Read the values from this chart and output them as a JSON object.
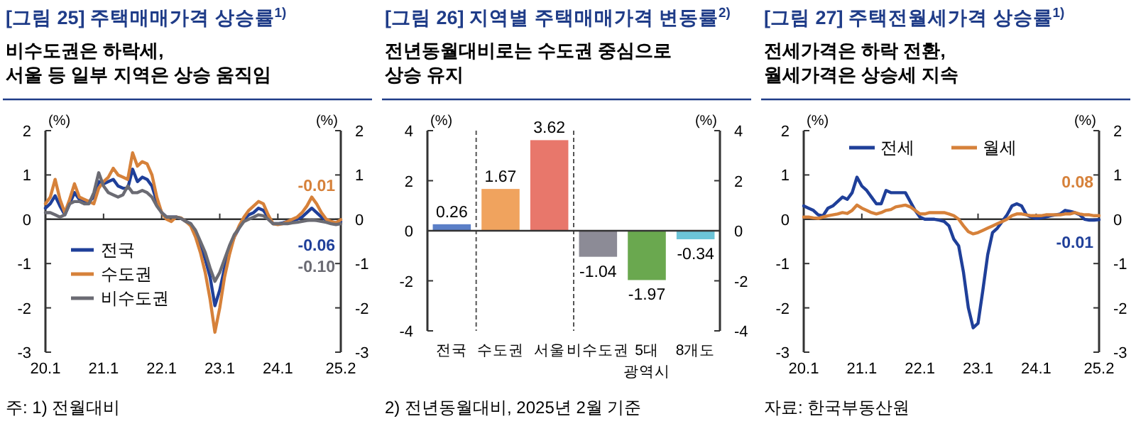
{
  "chart_data": [
    {
      "type": "line",
      "title": "[그림 25] 주택매매가격 상승률$^{1)}$",
      "subtitle": "비수도권은 하락세,\n서울 등 일부 지역은 상승 움직임",
      "ylabel": "(%)",
      "y2label": "(%)",
      "x": [
        "2020-01",
        "2020-02",
        "2020-03",
        "2020-04",
        "2020-05",
        "2020-06",
        "2020-07",
        "2020-08",
        "2020-09",
        "2020-10",
        "2020-11",
        "2020-12",
        "2021-01",
        "2021-02",
        "2021-03",
        "2021-04",
        "2021-05",
        "2021-06",
        "2021-07",
        "2021-08",
        "2021-09",
        "2021-10",
        "2021-11",
        "2021-12",
        "2022-01",
        "2022-02",
        "2022-03",
        "2022-04",
        "2022-05",
        "2022-06",
        "2022-07",
        "2022-08",
        "2022-09",
        "2022-10",
        "2022-11",
        "2022-12",
        "2023-01",
        "2023-02",
        "2023-03",
        "2023-04",
        "2023-05",
        "2023-06",
        "2023-07",
        "2023-08",
        "2023-09",
        "2023-10",
        "2023-11",
        "2023-12",
        "2024-01",
        "2024-02",
        "2024-03",
        "2024-04",
        "2024-05",
        "2024-06",
        "2024-07",
        "2024-08",
        "2024-09",
        "2024-10",
        "2024-11",
        "2024-12",
        "2025-01",
        "2025-02"
      ],
      "series": [
        {
          "name": "전국",
          "color": "#1f3f99",
          "values": [
            0.25,
            0.35,
            0.53,
            0.3,
            0.1,
            0.35,
            0.6,
            0.45,
            0.4,
            0.4,
            0.5,
            0.85,
            0.8,
            0.85,
            0.9,
            0.75,
            0.7,
            0.7,
            1.13,
            0.85,
            0.95,
            0.9,
            0.75,
            0.4,
            0.15,
            0.05,
            0.05,
            0.05,
            0.02,
            -0.05,
            -0.1,
            -0.3,
            -0.6,
            -0.9,
            -1.3,
            -1.95,
            -1.6,
            -1.1,
            -0.7,
            -0.4,
            -0.2,
            0.0,
            0.1,
            0.15,
            0.25,
            0.2,
            0.05,
            -0.1,
            -0.1,
            -0.08,
            -0.05,
            -0.03,
            0.0,
            0.05,
            0.15,
            0.25,
            0.15,
            0.05,
            -0.02,
            -0.07,
            -0.08,
            -0.06
          ]
        },
        {
          "name": "수도권",
          "color": "#d6813a",
          "values": [
            0.35,
            0.5,
            0.9,
            0.45,
            0.15,
            0.45,
            0.8,
            0.5,
            0.45,
            0.4,
            0.35,
            0.7,
            0.85,
            0.95,
            1.15,
            1.0,
            0.95,
            0.9,
            1.5,
            1.2,
            1.3,
            1.25,
            1.0,
            0.5,
            0.15,
            0.0,
            -0.05,
            0.05,
            0.03,
            -0.05,
            -0.15,
            -0.4,
            -0.75,
            -1.2,
            -1.8,
            -2.55,
            -2.0,
            -1.3,
            -0.8,
            -0.4,
            -0.15,
            0.05,
            0.2,
            0.3,
            0.4,
            0.35,
            0.1,
            -0.1,
            -0.12,
            -0.1,
            -0.05,
            0.0,
            0.05,
            0.15,
            0.3,
            0.5,
            0.35,
            0.15,
            0.0,
            -0.05,
            -0.08,
            -0.01
          ]
        },
        {
          "name": "비수도권",
          "color": "#6b6b73",
          "values": [
            0.15,
            0.15,
            0.1,
            0.05,
            0.1,
            0.35,
            0.4,
            0.4,
            0.35,
            0.35,
            0.6,
            1.05,
            0.75,
            0.6,
            0.55,
            0.5,
            0.55,
            0.75,
            0.6,
            0.6,
            0.65,
            0.6,
            0.5,
            0.3,
            0.15,
            0.05,
            0.05,
            0.05,
            0.02,
            -0.05,
            -0.1,
            -0.25,
            -0.5,
            -0.75,
            -1.1,
            -1.4,
            -1.2,
            -0.9,
            -0.6,
            -0.35,
            -0.2,
            -0.05,
            0.0,
            0.05,
            0.1,
            0.08,
            0.0,
            -0.1,
            -0.1,
            -0.1,
            -0.1,
            -0.08,
            -0.07,
            -0.05,
            -0.03,
            -0.02,
            -0.03,
            -0.05,
            -0.07,
            -0.1,
            -0.12,
            -0.1
          ]
        }
      ],
      "xlim": [
        "2020-01",
        "2025-02"
      ],
      "xticks": [
        {
          "value": "2020-01",
          "label": "20.1"
        },
        {
          "value": "2021-01",
          "label": "21.1"
        },
        {
          "value": "2022-01",
          "label": "22.1"
        },
        {
          "value": "2023-01",
          "label": "23.1"
        },
        {
          "value": "2024-01",
          "label": "24.1"
        },
        {
          "value": "2025-02",
          "label": "25.2"
        }
      ],
      "ylim": [
        -3,
        2
      ],
      "yticks": [
        -3,
        -2,
        -1,
        0,
        1,
        2
      ],
      "y2lim": [
        -3,
        2
      ],
      "y2ticks": [
        -3,
        -2,
        -1,
        0,
        1,
        2
      ],
      "annotations": [
        {
          "text": "-0.01",
          "x": "2025-02",
          "y": -0.01
        },
        {
          "text": "-0.06",
          "x": "2025-02",
          "y": -0.06
        },
        {
          "text": "-0.10",
          "x": "2025-02",
          "y": -0.1
        },
        "주: 1) 전월대비"
      ],
      "legend": "bottom left",
      "line_style": "solid"
    },
    {
      "type": "bar",
      "title": "[그림 26] 지역별 주택매매가격 변동률$^{2)}$",
      "subtitle": "전년동월대비로는 수도권 중심으로\n상승 유지",
      "ylabel": "(%)",
      "y2label": "(%)",
      "categories": [
        "전국",
        "수도권",
        "서울",
        "비수도권",
        "5대\n광역시",
        "8개도"
      ],
      "values": [
        0.26,
        1.67,
        3.62,
        -1.04,
        -1.97,
        -0.34
      ],
      "colors": [
        "#5b7fc7",
        "#f0a35e",
        "#e8776b",
        "#8c8b96",
        "#6aa84f",
        "#6cc4d8"
      ],
      "data_labels": true,
      "ylim": [
        -4,
        4
      ],
      "yticks": [
        -4,
        -2,
        0,
        2,
        4
      ],
      "y2lim": [
        -4,
        4
      ],
      "y2ticks": [
        -4,
        -2,
        0,
        2,
        4
      ],
      "annotations": [
        "2) 전년동월대비, 2025년 2월 기준"
      ]
    },
    {
      "type": "line",
      "title": "[그림 27] 주택전월세가격 상승률$^{1)}$",
      "subtitle": "전세가격은 하락 전환,\n월세가격은 상승세 지속",
      "ylabel": "(%)",
      "y2label": "(%)",
      "x": [
        "2020-01",
        "2020-02",
        "2020-03",
        "2020-04",
        "2020-05",
        "2020-06",
        "2020-07",
        "2020-08",
        "2020-09",
        "2020-10",
        "2020-11",
        "2020-12",
        "2021-01",
        "2021-02",
        "2021-03",
        "2021-04",
        "2021-05",
        "2021-06",
        "2021-07",
        "2021-08",
        "2021-09",
        "2021-10",
        "2021-11",
        "2021-12",
        "2022-01",
        "2022-02",
        "2022-03",
        "2022-04",
        "2022-05",
        "2022-06",
        "2022-07",
        "2022-08",
        "2022-09",
        "2022-10",
        "2022-11",
        "2022-12",
        "2023-01",
        "2023-02",
        "2023-03",
        "2023-04",
        "2023-05",
        "2023-06",
        "2023-07",
        "2023-08",
        "2023-09",
        "2023-10",
        "2023-11",
        "2023-12",
        "2024-01",
        "2024-02",
        "2024-03",
        "2024-04",
        "2024-05",
        "2024-06",
        "2024-07",
        "2024-08",
        "2024-09",
        "2024-10",
        "2024-11",
        "2024-12",
        "2025-01",
        "2025-02"
      ],
      "series": [
        {
          "name": "전세",
          "color": "#1f3f99",
          "values": [
            0.3,
            0.25,
            0.2,
            0.1,
            0.08,
            0.25,
            0.3,
            0.4,
            0.5,
            0.45,
            0.6,
            0.95,
            0.75,
            0.65,
            0.5,
            0.35,
            0.35,
            0.65,
            0.6,
            0.6,
            0.6,
            0.6,
            0.4,
            0.2,
            0.05,
            0.0,
            0.0,
            0.0,
            -0.02,
            -0.05,
            -0.15,
            -0.45,
            -0.6,
            -1.2,
            -2.0,
            -2.45,
            -2.35,
            -1.6,
            -0.8,
            -0.3,
            -0.2,
            -0.05,
            0.1,
            0.3,
            0.35,
            0.3,
            0.1,
            0.05,
            0.02,
            0.03,
            0.05,
            0.08,
            0.1,
            0.12,
            0.2,
            0.18,
            0.15,
            0.1,
            0.0,
            -0.02,
            -0.02,
            -0.01
          ]
        },
        {
          "name": "월세",
          "color": "#d6813a",
          "values": [
            0.05,
            0.05,
            0.03,
            0.02,
            0.05,
            0.08,
            0.1,
            0.12,
            0.15,
            0.13,
            0.2,
            0.32,
            0.25,
            0.2,
            0.15,
            0.12,
            0.15,
            0.2,
            0.22,
            0.28,
            0.3,
            0.32,
            0.28,
            0.2,
            0.12,
            0.12,
            0.15,
            0.15,
            0.15,
            0.15,
            0.12,
            0.08,
            0.0,
            -0.15,
            -0.28,
            -0.33,
            -0.3,
            -0.25,
            -0.2,
            -0.15,
            -0.1,
            -0.05,
            0.0,
            0.08,
            0.12,
            0.12,
            0.1,
            0.08,
            0.08,
            0.08,
            0.1,
            0.1,
            0.1,
            0.1,
            0.12,
            0.12,
            0.15,
            0.12,
            0.1,
            0.1,
            0.08,
            0.08
          ]
        }
      ],
      "xlim": [
        "2020-01",
        "2025-02"
      ],
      "xticks": [
        {
          "value": "2020-01",
          "label": "20.1"
        },
        {
          "value": "2021-01",
          "label": "21.1"
        },
        {
          "value": "2022-01",
          "label": "22.1"
        },
        {
          "value": "2023-01",
          "label": "23.1"
        },
        {
          "value": "2024-01",
          "label": "24.1"
        },
        {
          "value": "2025-02",
          "label": "25.2"
        }
      ],
      "ylim": [
        -3,
        2
      ],
      "yticks": [
        -3,
        -2,
        -1,
        0,
        1,
        2
      ],
      "y2lim": [
        -3,
        2
      ],
      "y2ticks": [
        -3,
        -2,
        -1,
        0,
        1,
        2
      ],
      "annotations": [
        {
          "text": "0.08",
          "x": "2025-02",
          "y": 0.08
        },
        {
          "text": "-0.01",
          "x": "2025-02",
          "y": -0.01
        },
        "자료: 한국부동산원"
      ],
      "legend": "top",
      "line_style": "solid"
    }
  ]
}
